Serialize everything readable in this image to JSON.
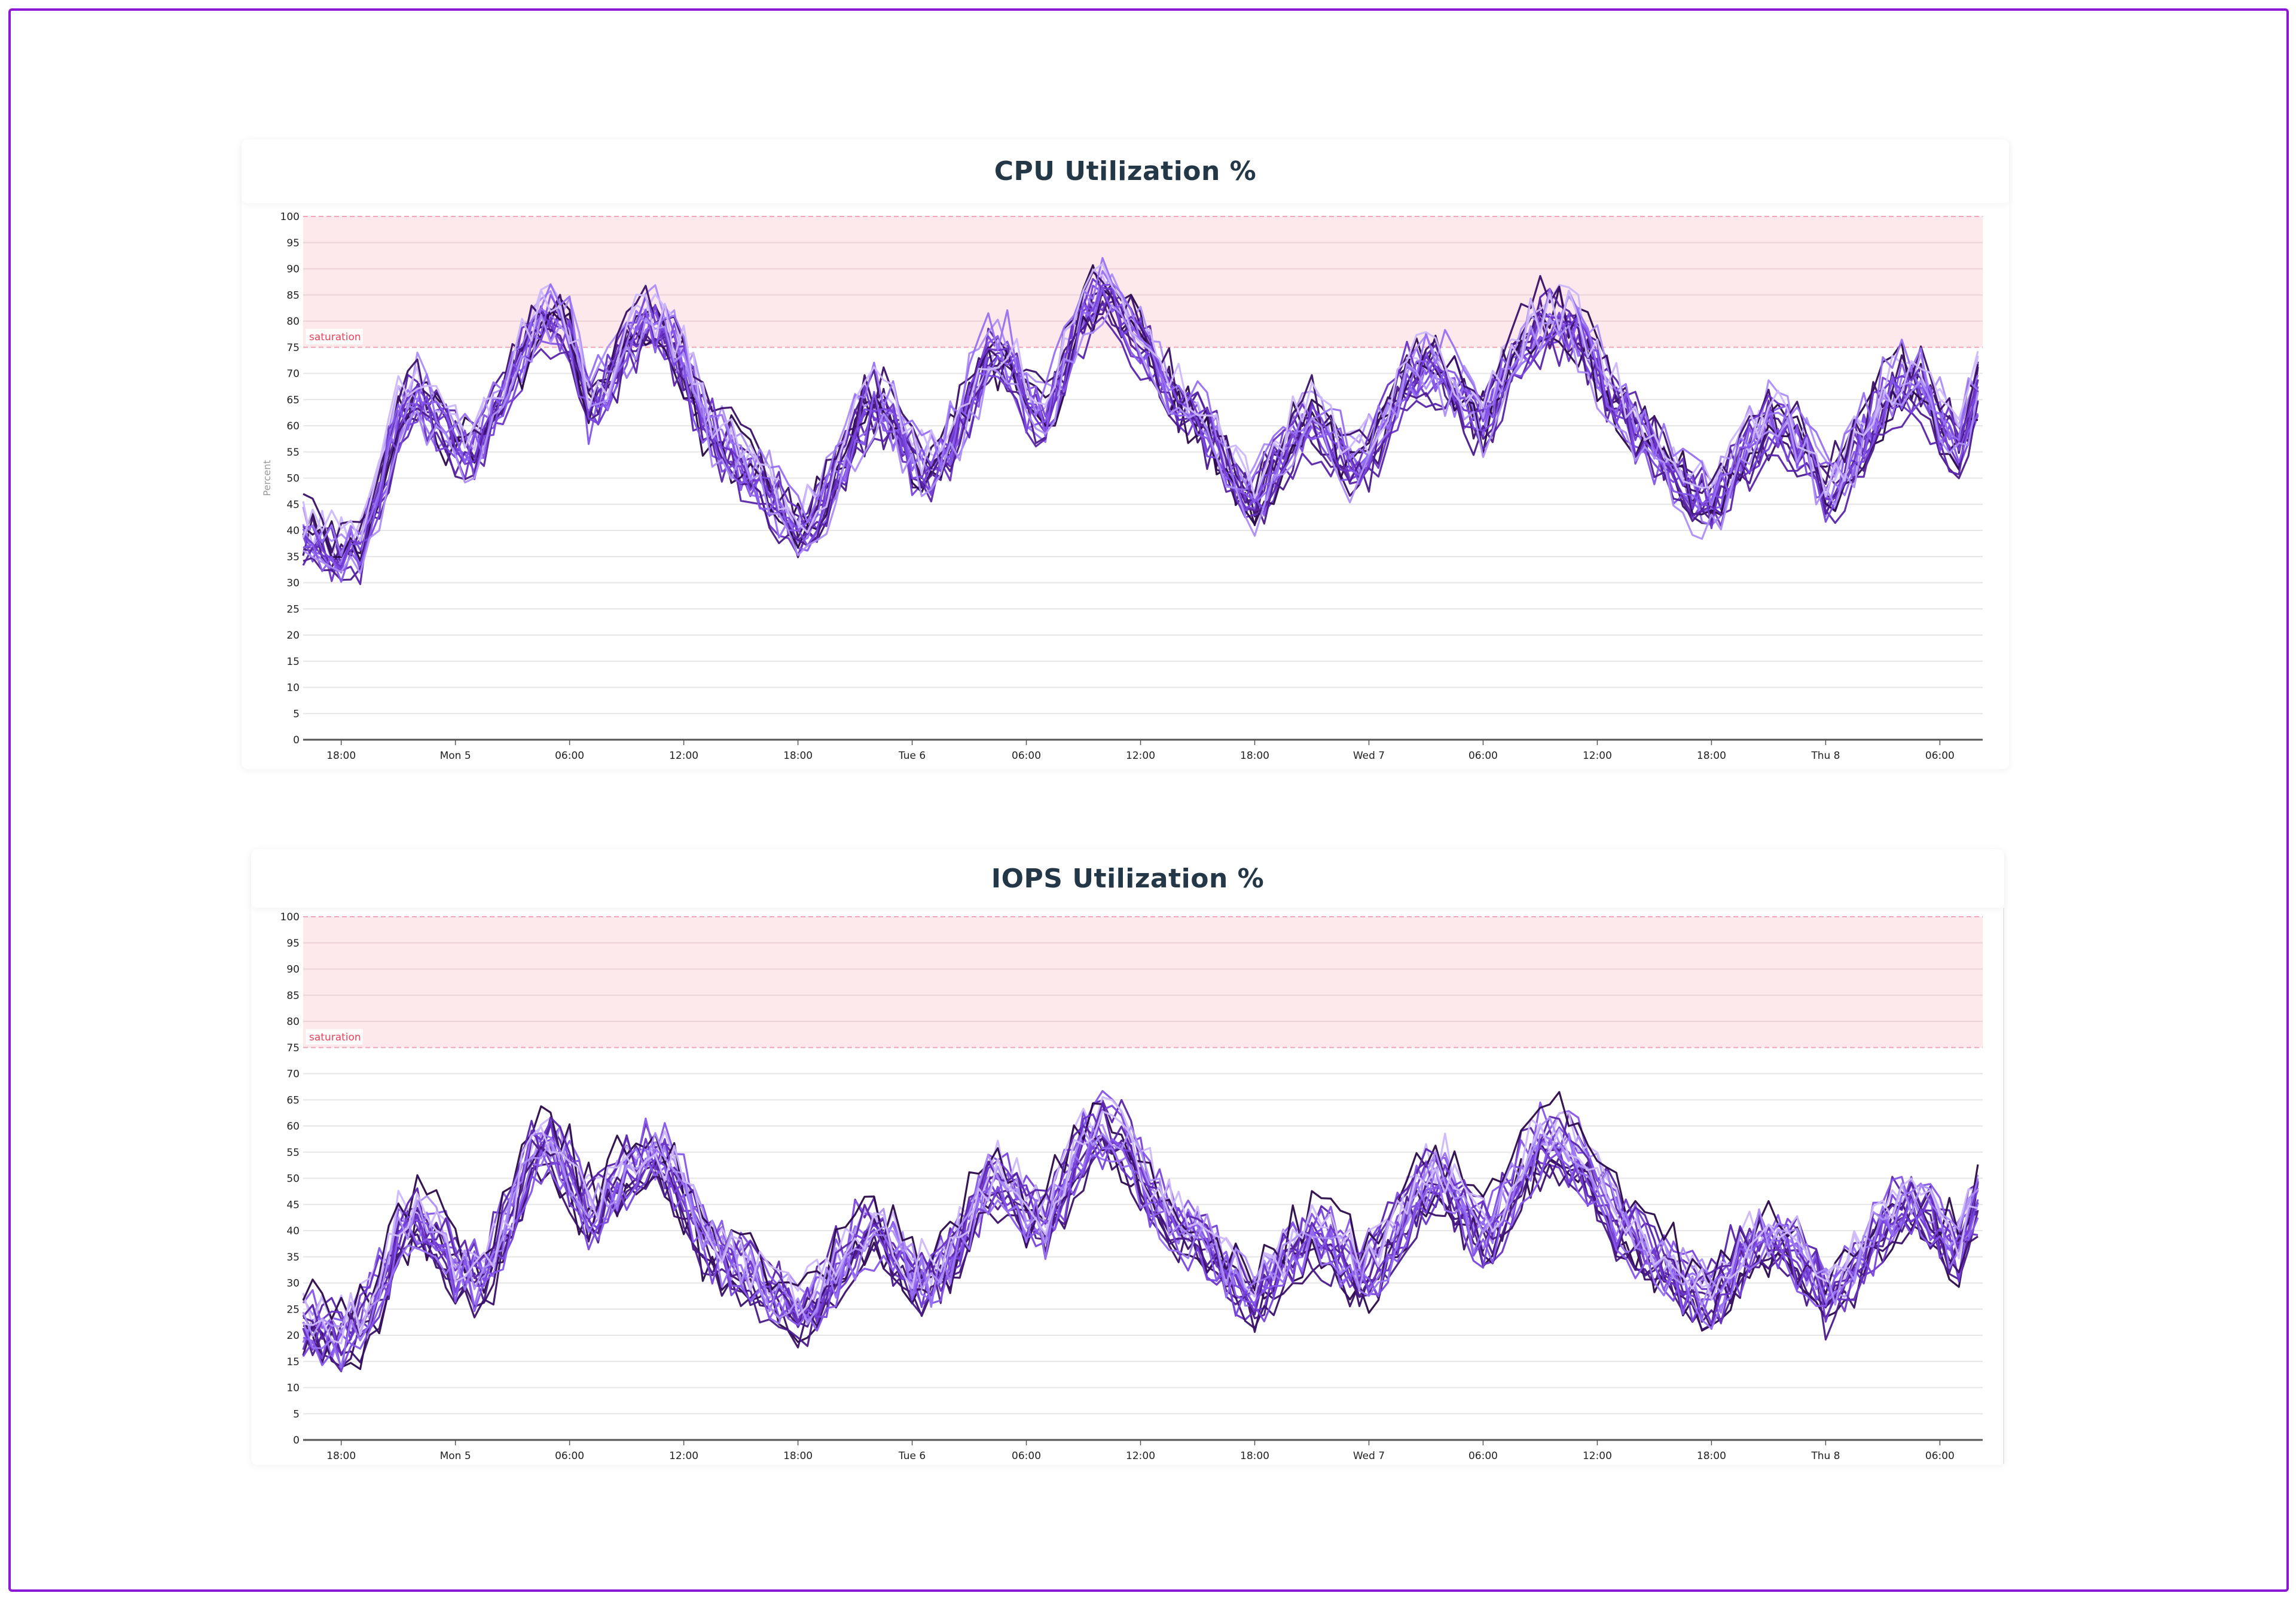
{
  "chart_data": [
    {
      "type": "line",
      "title": "CPU Utilization %",
      "ylabel": "Percent",
      "xlabel": "",
      "ylim": [
        0,
        100
      ],
      "y_ticks": [
        "0",
        "5",
        "10",
        "15",
        "20",
        "25",
        "30",
        "35",
        "40",
        "45",
        "50",
        "55",
        "60",
        "65",
        "70",
        "75",
        "80",
        "85",
        "90",
        "95",
        "100"
      ],
      "xlim": [
        "Sun 4 16:00",
        "Thu 8 08:15"
      ],
      "x_ticks": [
        "18:00",
        "Mon 5",
        "06:00",
        "12:00",
        "18:00",
        "Tue 6",
        "06:00",
        "12:00",
        "18:00",
        "Wed 7",
        "06:00",
        "12:00",
        "18:00",
        "Thu 8",
        "06:00"
      ],
      "x_tick_interval": "6h",
      "grid": true,
      "threshold_band": {
        "label": "saturation",
        "from": 75,
        "to": 100,
        "color": "#fde8ec",
        "line_color": "#f1a7b5",
        "text_color": "#e8435a"
      },
      "series_count": 20,
      "series_start": "Sun 4 16:00",
      "series_interval": "1h",
      "median": [
        40,
        38,
        36,
        38,
        48,
        62,
        66,
        62,
        57,
        56,
        62,
        70,
        78,
        81,
        78,
        64,
        68,
        76,
        80,
        79,
        72,
        62,
        57,
        54,
        50,
        45,
        40,
        43,
        51,
        59,
        65,
        62,
        54,
        52,
        56,
        65,
        74,
        73,
        66,
        62,
        72,
        82,
        86,
        82,
        78,
        70,
        65,
        62,
        57,
        50,
        46,
        52,
        58,
        62,
        58,
        53,
        55,
        62,
        70,
        72,
        70,
        65,
        60,
        68,
        75,
        80,
        81,
        78,
        72,
        65,
        60,
        56,
        52,
        48,
        45,
        50,
        56,
        60,
        60,
        55,
        48,
        52,
        58,
        65,
        68,
        68,
        61,
        56,
        68
      ],
      "colors": [
        "#2a0a4a",
        "#3a1068",
        "#4a1a8a",
        "#5a25aa",
        "#6a34c8",
        "#7844dc",
        "#8656ea",
        "#9870f2",
        "#ad8ef6",
        "#cdb8fb"
      ]
    },
    {
      "type": "line",
      "title": "IOPS Utilization %",
      "ylabel": "",
      "xlabel": "",
      "ylim": [
        0,
        100
      ],
      "y_ticks": [
        "0",
        "5",
        "10",
        "15",
        "20",
        "25",
        "30",
        "35",
        "40",
        "45",
        "50",
        "55",
        "60",
        "65",
        "70",
        "75",
        "80",
        "85",
        "90",
        "95",
        "100"
      ],
      "xlim": [
        "Sun 4 16:00",
        "Thu 8 08:15"
      ],
      "x_ticks": [
        "18:00",
        "Mon 5",
        "06:00",
        "12:00",
        "18:00",
        "Tue 6",
        "06:00",
        "12:00",
        "18:00",
        "Wed 7",
        "06:00",
        "12:00",
        "18:00",
        "Thu 8",
        "06:00"
      ],
      "x_tick_interval": "6h",
      "grid": true,
      "threshold_band": {
        "label": "saturation",
        "from": 75,
        "to": 100,
        "color": "#fde8ec",
        "line_color": "#f1a7b5",
        "text_color": "#e8435a"
      },
      "series_count": 20,
      "series_start": "Sun 4 16:00",
      "series_interval": "1h",
      "median": [
        24,
        22,
        21,
        23,
        30,
        40,
        43,
        40,
        34,
        32,
        36,
        45,
        55,
        57,
        52,
        44,
        48,
        53,
        55,
        54,
        48,
        40,
        36,
        34,
        31,
        28,
        25,
        27,
        33,
        38,
        41,
        37,
        33,
        32,
        35,
        42,
        50,
        50,
        45,
        43,
        50,
        58,
        61,
        58,
        52,
        45,
        41,
        40,
        36,
        32,
        28,
        33,
        37,
        40,
        38,
        34,
        33,
        38,
        44,
        50,
        50,
        45,
        40,
        44,
        52,
        57,
        58,
        55,
        50,
        44,
        40,
        36,
        33,
        30,
        28,
        33,
        38,
        40,
        39,
        34,
        29,
        32,
        36,
        42,
        46,
        46,
        40,
        37,
        47
      ],
      "colors": [
        "#2a0a4a",
        "#3a1068",
        "#4a1a8a",
        "#5a25aa",
        "#6a34c8",
        "#7844dc",
        "#8656ea",
        "#9870f2",
        "#ad8ef6",
        "#cdb8fb"
      ]
    }
  ]
}
